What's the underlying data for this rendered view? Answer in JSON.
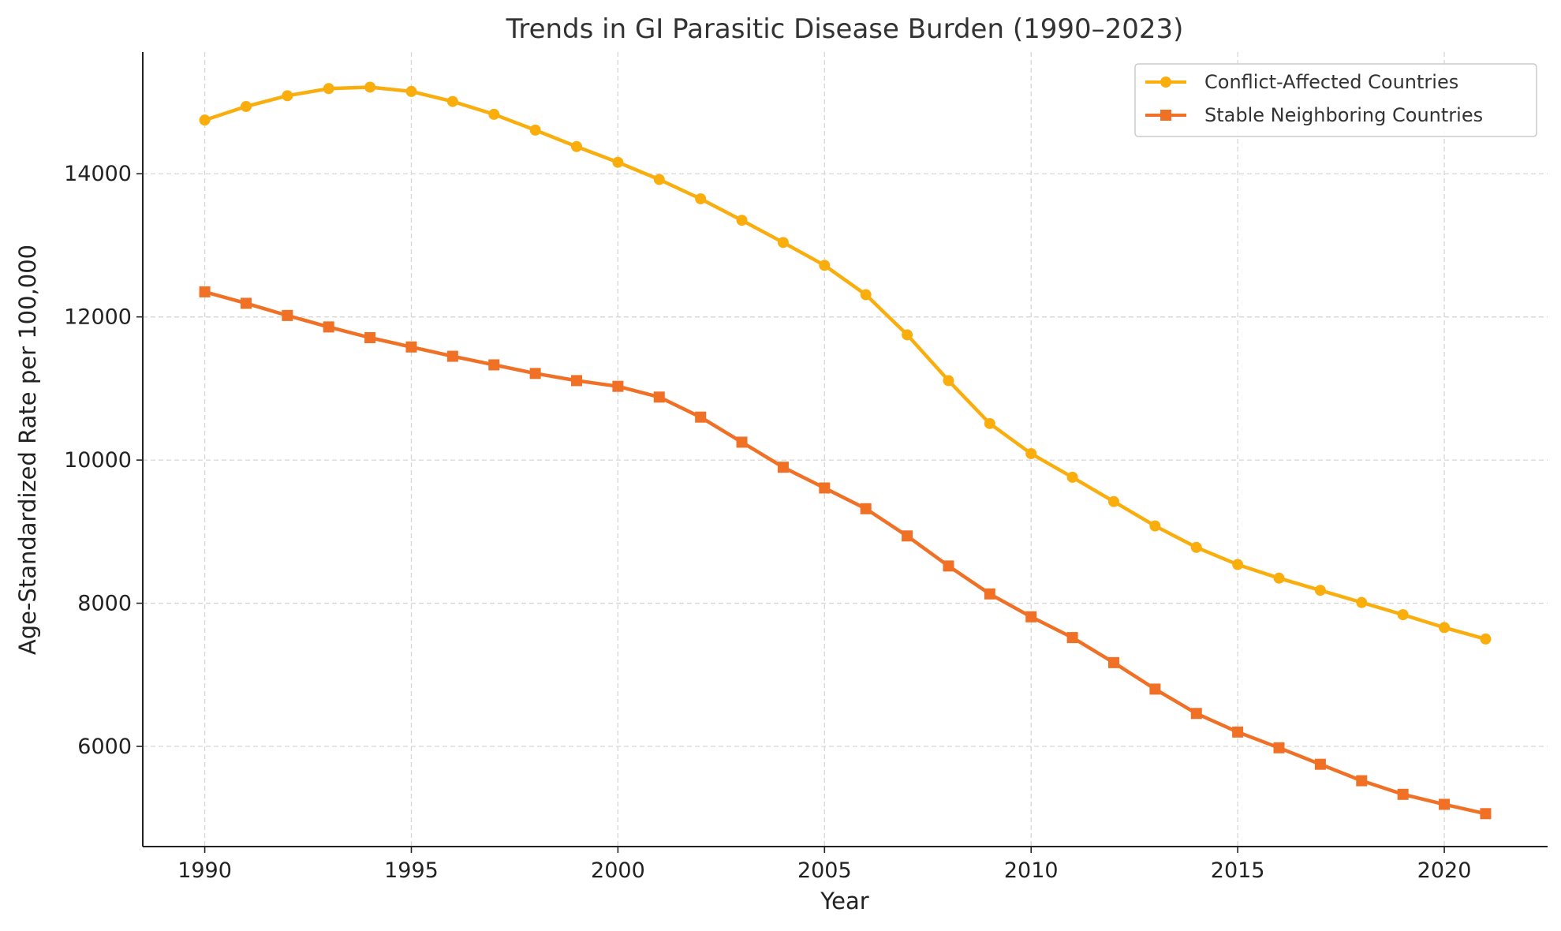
{
  "chart_data": {
    "type": "line",
    "title": "Trends in GI Parasitic Disease Burden (1990–2023)",
    "xlabel": "Year",
    "ylabel": "Age-Standardized Rate per 100,000",
    "xlim": [
      1988.5,
      2022.5
    ],
    "ylim": [
      4600,
      15700
    ],
    "xticks": [
      1990,
      1995,
      2000,
      2005,
      2010,
      2015,
      2020
    ],
    "yticks": [
      6000,
      8000,
      10000,
      12000,
      14000
    ],
    "grid": true,
    "legend_position": "top-right",
    "x": [
      1990,
      1991,
      1992,
      1993,
      1994,
      1995,
      1996,
      1997,
      1998,
      1999,
      2000,
      2001,
      2002,
      2003,
      2004,
      2005,
      2006,
      2007,
      2008,
      2009,
      2010,
      2011,
      2012,
      2013,
      2014,
      2015,
      2016,
      2017,
      2018,
      2019,
      2020,
      2021
    ],
    "series": [
      {
        "name": "Conflict-Affected Countries",
        "color": "#F9AE0E",
        "marker": "circle",
        "values": [
          14750,
          14940,
          15090,
          15190,
          15210,
          15150,
          15010,
          14830,
          14610,
          14380,
          14160,
          13920,
          13650,
          13350,
          13040,
          12720,
          12310,
          11750,
          11110,
          10510,
          10090,
          9760,
          9420,
          9080,
          8780,
          8540,
          8350,
          8180,
          8010,
          7840,
          7660,
          7500
        ]
      },
      {
        "name": "Stable Neighboring Countries",
        "color": "#F07025",
        "marker": "square",
        "values": [
          12350,
          12190,
          12020,
          11860,
          11710,
          11580,
          11450,
          11330,
          11210,
          11110,
          11030,
          10880,
          10600,
          10250,
          9900,
          9610,
          9320,
          8940,
          8520,
          8130,
          7810,
          7520,
          7170,
          6800,
          6460,
          6200,
          5980,
          5750,
          5520,
          5330,
          5190,
          5060
        ]
      }
    ]
  }
}
